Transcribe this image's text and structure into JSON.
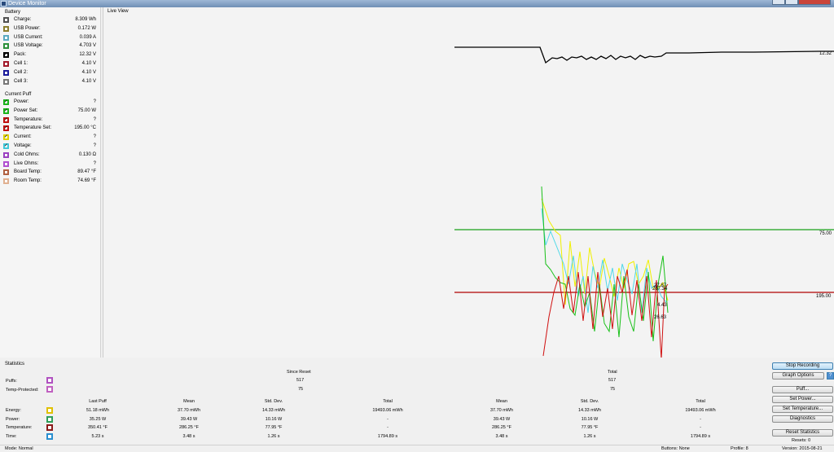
{
  "window": {
    "title": "Device Monitor"
  },
  "battery": {
    "title": "Battery",
    "items": [
      {
        "label": "Charge:",
        "value": "8.309 Wh",
        "color": "#505050",
        "checked": false
      },
      {
        "label": "USB Power:",
        "value": "0.172 W",
        "color": "#8b7d2c",
        "checked": false
      },
      {
        "label": "USB Current:",
        "value": "0.039 A",
        "color": "#5aa9c0",
        "checked": false
      },
      {
        "label": "USB Voltage:",
        "value": "4.703 V",
        "color": "#2b8f3a",
        "checked": false
      },
      {
        "label": "Pack:",
        "value": "12.32 V",
        "color": "#000000",
        "checked": true
      },
      {
        "label": "Cell 1:",
        "value": "4.10 V",
        "color": "#a0182a",
        "checked": false
      },
      {
        "label": "Cell 2:",
        "value": "4.10 V",
        "color": "#1a1a9a",
        "checked": false
      },
      {
        "label": "Cell 3:",
        "value": "4.10 V",
        "color": "#777777",
        "checked": false
      }
    ]
  },
  "current_puff": {
    "title": "Current Puff",
    "items": [
      {
        "label": "Power:",
        "value": "?",
        "color": "#19b319",
        "checked": true
      },
      {
        "label": "Power Set:",
        "value": "75.00 W",
        "color": "#19b319",
        "checked": true
      },
      {
        "label": "Temperature:",
        "value": "?",
        "color": "#c01010",
        "checked": true
      },
      {
        "label": "Temperature Set:",
        "value": "195.00 °C",
        "color": "#c01010",
        "checked": true
      },
      {
        "label": "Current:",
        "value": "?",
        "color": "#e0d000",
        "checked": true
      },
      {
        "label": "Voltage:",
        "value": "?",
        "color": "#40c8d8",
        "checked": true
      },
      {
        "label": "Cold Ohms:",
        "value": "0.130 Ω",
        "color": "#9a40c0",
        "checked": false
      },
      {
        "label": "Live Ohms:",
        "value": "?",
        "color": "#b050d0",
        "checked": false
      },
      {
        "label": "Board Temp:",
        "value": "89.47 °F",
        "color": "#b06040",
        "checked": false
      },
      {
        "label": "Room Temp:",
        "value": "74.69 °F",
        "color": "#e0b090",
        "checked": false
      }
    ]
  },
  "live_view": {
    "title": "Live View",
    "labels": {
      "pack": "12.32",
      "power_set": "75.00",
      "temp_set": "195.00",
      "current_end": "27.87",
      "power_end": "267.34",
      "voltage_end": "4.43",
      "temp_end": "26.63"
    },
    "colors": {
      "pack": "#000000",
      "power": "#19c019",
      "temperature": "#d01010",
      "current": "#f0f000",
      "voltage": "#50d8e8",
      "power_set": "#19a019",
      "temp_set": "#b00000"
    }
  },
  "statistics": {
    "title": "Statistics",
    "since_reset_header": "Since Reset",
    "total_header": "Total",
    "puffs_label": "Puffs:",
    "temp_protected_label": "Temp-Protected:",
    "puffs_since": "517",
    "puffs_total": "517",
    "tp_since": "75",
    "tp_total": "75",
    "columns": [
      "Last Puff",
      "Mean",
      "Std. Dev.",
      "Total",
      "Mean",
      "Std. Dev.",
      "Total"
    ],
    "rows": [
      {
        "label": "Energy:",
        "color": "#e0c000",
        "values": [
          "51.18 mWh",
          "37.70 mWh",
          "14.33 mWh",
          "19493.06 mWh",
          "37.70 mWh",
          "14.33 mWh",
          "19493.06 mWh"
        ]
      },
      {
        "label": "Power:",
        "color": "#2f9e5a",
        "values": [
          "35.25 W",
          "39.43 W",
          "10.16 W",
          "-",
          "39.43 W",
          "10.16 W",
          "-"
        ]
      },
      {
        "label": "Temperature:",
        "color": "#8a1a1a",
        "values": [
          "350.41 °F",
          "286.25 °F",
          "77.95 °F",
          "-",
          "286.25 °F",
          "77.95 °F",
          "-"
        ]
      },
      {
        "label": "Time:",
        "color": "#2a8fd0",
        "values": [
          "5.23 s",
          "3.48 s",
          "1.26 s",
          "1794.89 s",
          "3.48 s",
          "1.26 s",
          "1794.89 s"
        ]
      }
    ],
    "puffs_color": "#b050c0",
    "tp_color": "#c060c0"
  },
  "buttons": {
    "stop_recording": "Stop Recording",
    "graph_options": "Graph Options",
    "graph_options_icon": "?",
    "puff": "Puff...",
    "set_power": "Set Power...",
    "set_temperature": "Set Temperature...",
    "diagnostics": "Diagnostics",
    "reset_statistics": "Reset Statistics",
    "resets": "Resets: 0"
  },
  "status": {
    "mode": "Mode: Normal",
    "buttons": "Buttons: None",
    "profile": "Profile: 8",
    "version": "Version: 2015-08-21"
  }
}
